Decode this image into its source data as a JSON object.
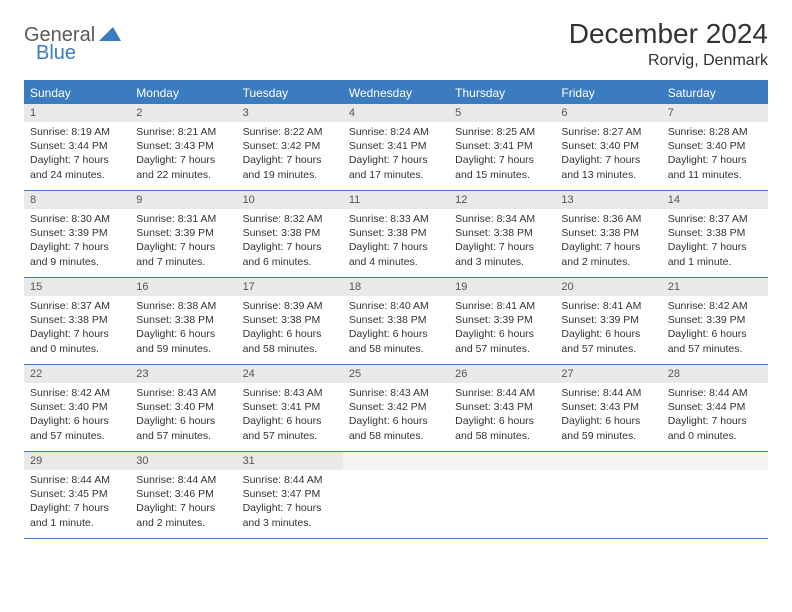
{
  "logo": {
    "text1": "General",
    "text2": "Blue"
  },
  "title": "December 2024",
  "location": "Rorvig, Denmark",
  "colors": {
    "accent": "#3b7bbf",
    "header_bg": "#3b7bbf",
    "daynum_bg": "#e9e9e9",
    "border": "#3b7bbf",
    "text": "#333333",
    "logo_gray": "#5a5a5a"
  },
  "weekdays": [
    "Sunday",
    "Monday",
    "Tuesday",
    "Wednesday",
    "Thursday",
    "Friday",
    "Saturday"
  ],
  "weeks": [
    [
      {
        "num": "1",
        "sunrise": "Sunrise: 8:19 AM",
        "sunset": "Sunset: 3:44 PM",
        "daylight1": "Daylight: 7 hours",
        "daylight2": "and 24 minutes."
      },
      {
        "num": "2",
        "sunrise": "Sunrise: 8:21 AM",
        "sunset": "Sunset: 3:43 PM",
        "daylight1": "Daylight: 7 hours",
        "daylight2": "and 22 minutes."
      },
      {
        "num": "3",
        "sunrise": "Sunrise: 8:22 AM",
        "sunset": "Sunset: 3:42 PM",
        "daylight1": "Daylight: 7 hours",
        "daylight2": "and 19 minutes."
      },
      {
        "num": "4",
        "sunrise": "Sunrise: 8:24 AM",
        "sunset": "Sunset: 3:41 PM",
        "daylight1": "Daylight: 7 hours",
        "daylight2": "and 17 minutes."
      },
      {
        "num": "5",
        "sunrise": "Sunrise: 8:25 AM",
        "sunset": "Sunset: 3:41 PM",
        "daylight1": "Daylight: 7 hours",
        "daylight2": "and 15 minutes."
      },
      {
        "num": "6",
        "sunrise": "Sunrise: 8:27 AM",
        "sunset": "Sunset: 3:40 PM",
        "daylight1": "Daylight: 7 hours",
        "daylight2": "and 13 minutes."
      },
      {
        "num": "7",
        "sunrise": "Sunrise: 8:28 AM",
        "sunset": "Sunset: 3:40 PM",
        "daylight1": "Daylight: 7 hours",
        "daylight2": "and 11 minutes."
      }
    ],
    [
      {
        "num": "8",
        "sunrise": "Sunrise: 8:30 AM",
        "sunset": "Sunset: 3:39 PM",
        "daylight1": "Daylight: 7 hours",
        "daylight2": "and 9 minutes."
      },
      {
        "num": "9",
        "sunrise": "Sunrise: 8:31 AM",
        "sunset": "Sunset: 3:39 PM",
        "daylight1": "Daylight: 7 hours",
        "daylight2": "and 7 minutes."
      },
      {
        "num": "10",
        "sunrise": "Sunrise: 8:32 AM",
        "sunset": "Sunset: 3:38 PM",
        "daylight1": "Daylight: 7 hours",
        "daylight2": "and 6 minutes."
      },
      {
        "num": "11",
        "sunrise": "Sunrise: 8:33 AM",
        "sunset": "Sunset: 3:38 PM",
        "daylight1": "Daylight: 7 hours",
        "daylight2": "and 4 minutes."
      },
      {
        "num": "12",
        "sunrise": "Sunrise: 8:34 AM",
        "sunset": "Sunset: 3:38 PM",
        "daylight1": "Daylight: 7 hours",
        "daylight2": "and 3 minutes."
      },
      {
        "num": "13",
        "sunrise": "Sunrise: 8:36 AM",
        "sunset": "Sunset: 3:38 PM",
        "daylight1": "Daylight: 7 hours",
        "daylight2": "and 2 minutes."
      },
      {
        "num": "14",
        "sunrise": "Sunrise: 8:37 AM",
        "sunset": "Sunset: 3:38 PM",
        "daylight1": "Daylight: 7 hours",
        "daylight2": "and 1 minute."
      }
    ],
    [
      {
        "num": "15",
        "sunrise": "Sunrise: 8:37 AM",
        "sunset": "Sunset: 3:38 PM",
        "daylight1": "Daylight: 7 hours",
        "daylight2": "and 0 minutes."
      },
      {
        "num": "16",
        "sunrise": "Sunrise: 8:38 AM",
        "sunset": "Sunset: 3:38 PM",
        "daylight1": "Daylight: 6 hours",
        "daylight2": "and 59 minutes."
      },
      {
        "num": "17",
        "sunrise": "Sunrise: 8:39 AM",
        "sunset": "Sunset: 3:38 PM",
        "daylight1": "Daylight: 6 hours",
        "daylight2": "and 58 minutes."
      },
      {
        "num": "18",
        "sunrise": "Sunrise: 8:40 AM",
        "sunset": "Sunset: 3:38 PM",
        "daylight1": "Daylight: 6 hours",
        "daylight2": "and 58 minutes."
      },
      {
        "num": "19",
        "sunrise": "Sunrise: 8:41 AM",
        "sunset": "Sunset: 3:39 PM",
        "daylight1": "Daylight: 6 hours",
        "daylight2": "and 57 minutes."
      },
      {
        "num": "20",
        "sunrise": "Sunrise: 8:41 AM",
        "sunset": "Sunset: 3:39 PM",
        "daylight1": "Daylight: 6 hours",
        "daylight2": "and 57 minutes."
      },
      {
        "num": "21",
        "sunrise": "Sunrise: 8:42 AM",
        "sunset": "Sunset: 3:39 PM",
        "daylight1": "Daylight: 6 hours",
        "daylight2": "and 57 minutes."
      }
    ],
    [
      {
        "num": "22",
        "sunrise": "Sunrise: 8:42 AM",
        "sunset": "Sunset: 3:40 PM",
        "daylight1": "Daylight: 6 hours",
        "daylight2": "and 57 minutes."
      },
      {
        "num": "23",
        "sunrise": "Sunrise: 8:43 AM",
        "sunset": "Sunset: 3:40 PM",
        "daylight1": "Daylight: 6 hours",
        "daylight2": "and 57 minutes."
      },
      {
        "num": "24",
        "sunrise": "Sunrise: 8:43 AM",
        "sunset": "Sunset: 3:41 PM",
        "daylight1": "Daylight: 6 hours",
        "daylight2": "and 57 minutes."
      },
      {
        "num": "25",
        "sunrise": "Sunrise: 8:43 AM",
        "sunset": "Sunset: 3:42 PM",
        "daylight1": "Daylight: 6 hours",
        "daylight2": "and 58 minutes."
      },
      {
        "num": "26",
        "sunrise": "Sunrise: 8:44 AM",
        "sunset": "Sunset: 3:43 PM",
        "daylight1": "Daylight: 6 hours",
        "daylight2": "and 58 minutes."
      },
      {
        "num": "27",
        "sunrise": "Sunrise: 8:44 AM",
        "sunset": "Sunset: 3:43 PM",
        "daylight1": "Daylight: 6 hours",
        "daylight2": "and 59 minutes."
      },
      {
        "num": "28",
        "sunrise": "Sunrise: 8:44 AM",
        "sunset": "Sunset: 3:44 PM",
        "daylight1": "Daylight: 7 hours",
        "daylight2": "and 0 minutes."
      }
    ],
    [
      {
        "num": "29",
        "sunrise": "Sunrise: 8:44 AM",
        "sunset": "Sunset: 3:45 PM",
        "daylight1": "Daylight: 7 hours",
        "daylight2": "and 1 minute."
      },
      {
        "num": "30",
        "sunrise": "Sunrise: 8:44 AM",
        "sunset": "Sunset: 3:46 PM",
        "daylight1": "Daylight: 7 hours",
        "daylight2": "and 2 minutes."
      },
      {
        "num": "31",
        "sunrise": "Sunrise: 8:44 AM",
        "sunset": "Sunset: 3:47 PM",
        "daylight1": "Daylight: 7 hours",
        "daylight2": "and 3 minutes."
      },
      null,
      null,
      null,
      null
    ]
  ]
}
